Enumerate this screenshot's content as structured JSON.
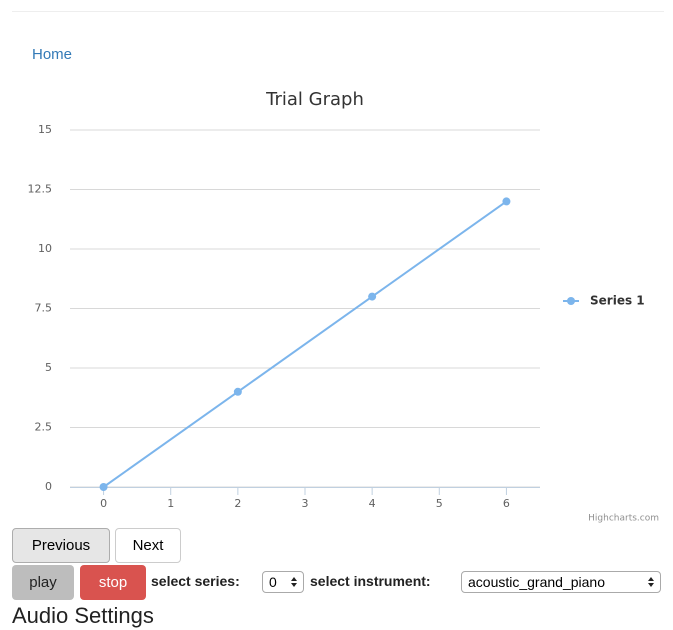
{
  "nav": {
    "home": "Home"
  },
  "chart_data": {
    "type": "line",
    "title": "Trial Graph",
    "x": [
      0,
      2,
      4,
      6
    ],
    "series": [
      {
        "name": "Series 1",
        "color": "#7cb5ec",
        "values": [
          0,
          4,
          8,
          12
        ]
      }
    ],
    "xlim": [
      -0.5,
      6.5
    ],
    "xticks": [
      0,
      1,
      2,
      3,
      4,
      5,
      6
    ],
    "ylim": [
      0,
      15
    ],
    "yticks": [
      0,
      2.5,
      5,
      7.5,
      10,
      12.5,
      15
    ],
    "grid": true,
    "legend": "right",
    "credits": "Highcharts.com"
  },
  "controls": {
    "previous": "Previous",
    "next": "Next",
    "play": "play",
    "stop": "stop",
    "series_label": "select series:",
    "series_value": "0",
    "instrument_label": "select instrument:",
    "instrument_value": "acoustic_grand_piano"
  },
  "section": {
    "heading": "Audio Settings"
  }
}
